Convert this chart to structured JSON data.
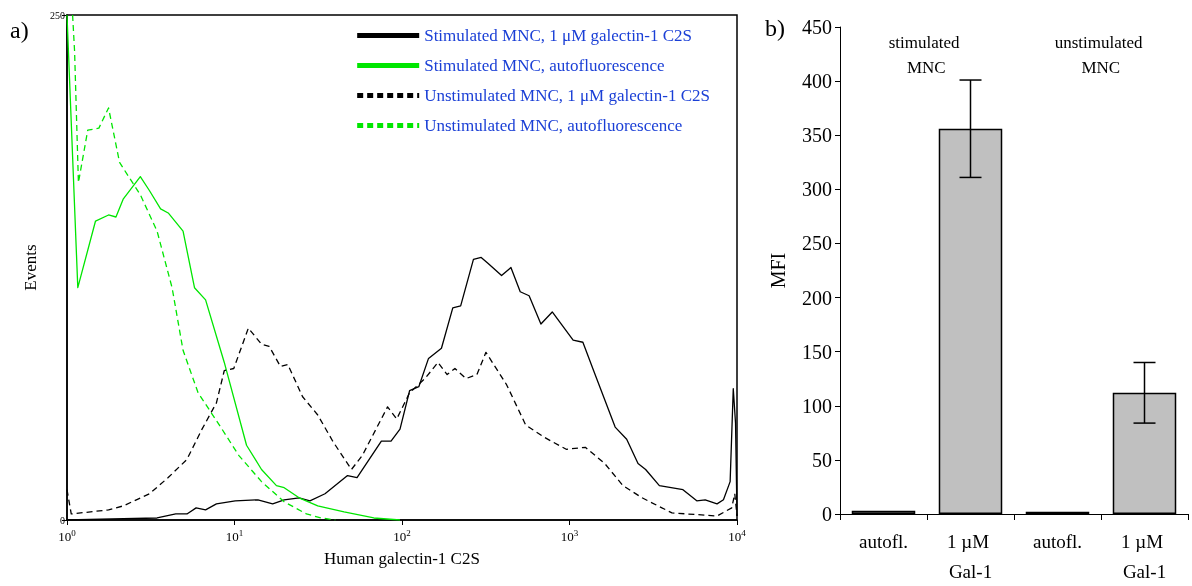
{
  "chart_data": [
    {
      "type": "line",
      "xlabel": "Human galectin-1 C2S",
      "ylabel": "Events",
      "annotations": [
        "a)"
      ],
      "log": "x",
      "xlim": [
        1,
        10000
      ],
      "xticks": [
        {
          "value": 1,
          "label": "10$^{0}$"
        },
        {
          "value": 10,
          "label": "10$^{1}$"
        },
        {
          "value": 100,
          "label": "10$^{2}$"
        },
        {
          "value": 1000,
          "label": "10$^{3}$"
        },
        {
          "value": 10000,
          "label": "10$^{4}$"
        }
      ],
      "ylim": [
        0,
        250
      ],
      "yticks": [
        0,
        250
      ],
      "grid": false,
      "legend": "top right",
      "marker": "none",
      "series": [
        {
          "name": "Stimulated MNC, 1 μM galectin-1 C2S",
          "color": "#000000",
          "line_style": "solid",
          "x": [
            1,
            3.45,
            4.46,
            5.2,
            5.9,
            6.72,
            7.8,
            10.1,
            13.8,
            16.9,
            19.8,
            24.3,
            28.2,
            34.7,
            47.3,
            53.9,
            75.3,
            86,
            97.3,
            111,
            126,
            144,
            172,
            201,
            224,
            267,
            297,
            327,
            393,
            447,
            508,
            574,
            675,
            789,
            1051,
            1202,
            1392,
            1873,
            2195,
            2565,
            2848,
            3440,
            4758,
            5750,
            6460,
            7600,
            8300,
            9100,
            9500,
            9800,
            10000
          ],
          "values": [
            0,
            1,
            3,
            3,
            6,
            5,
            8,
            9.5,
            10,
            8,
            10,
            11,
            9.5,
            13,
            22,
            21,
            39,
            39,
            45,
            64,
            66,
            80,
            85,
            105,
            106,
            129,
            130,
            127,
            121,
            125,
            113,
            111,
            97,
            103,
            89,
            88,
            74,
            46,
            40,
            28,
            25,
            17,
            15,
            9.5,
            10,
            8,
            10,
            19,
            65,
            48,
            2
          ]
        },
        {
          "name": "Stimulated MNC, autofluorescence",
          "color": "#00e600",
          "line_style": "solid",
          "x": [
            1,
            1.16,
            1.48,
            1.77,
            1.96,
            2.17,
            2.74,
            3.11,
            3.62,
            4.02,
            4.93,
            5.77,
            6.72,
            8.69,
            11.8,
            14.5,
            17.8,
            19.8,
            24.3,
            31.4,
            45.1,
            67.9,
            97.3
          ],
          "values": [
            250,
            115,
            148,
            151,
            150,
            159,
            170,
            163,
            154,
            152,
            143,
            115,
            109,
            78,
            37,
            25,
            17,
            16,
            11,
            7,
            4,
            1,
            0
          ]
        },
        {
          "name": "Unstimulated MNC, 1 μM galectin-1 C2S",
          "color": "#000000",
          "line_style": "dashed",
          "x": [
            1,
            1.06,
            1.77,
            2.17,
            3.11,
            4.02,
            5.2,
            6.4,
            7.8,
            8.69,
            9.9,
            12.1,
            14.5,
            16.1,
            18.8,
            20.8,
            25.5,
            31.4,
            38.6,
            49.9,
            58,
            82,
            93,
            111,
            137,
            164,
            186,
            207,
            241,
            280,
            317,
            421,
            548,
            705,
            956,
            1243,
            1622,
            2086,
            2710,
            4090,
            7600,
            9300,
            9700,
            10000
          ],
          "values": [
            15,
            3,
            5,
            7,
            13,
            21,
            30,
            45,
            58,
            74,
            75,
            95,
            87,
            86,
            76,
            77,
            61,
            52,
            39,
            25,
            32,
            56,
            50,
            63,
            70,
            78,
            72,
            75,
            70,
            72,
            83,
            67,
            47,
            41,
            35,
            36,
            28,
            17,
            11,
            3.5,
            2,
            6,
            13,
            2
          ]
        },
        {
          "name": "Unstimulated MNC, autofluorescence",
          "color": "#00e600",
          "line_style": "dashed",
          "x": [
            1.08,
            1.11,
            1.17,
            1.33,
            1.55,
            1.77,
            2.06,
            2.74,
            3.45,
            4.24,
            4.93,
            6.06,
            8.27,
            10.6,
            14.5,
            19.8,
            26.9,
            33,
            40
          ],
          "values": [
            250,
            232,
            167,
            193,
            194,
            204,
            177,
            161,
            143,
            115,
            84,
            63,
            46,
            32,
            19,
            9,
            3,
            1,
            0
          ]
        }
      ]
    },
    {
      "type": "bar",
      "ylabel": "MFI",
      "annotations": [
        "b)",
        "stimulated MNC",
        "unstimulated MNC"
      ],
      "categories": [
        "autofl.",
        "1 µM Gal-1",
        "autofl.",
        "1 µM Gal-1"
      ],
      "values": [
        3,
        356,
        2,
        112
      ],
      "errors": [
        null,
        45,
        null,
        28
      ],
      "color": "#c0c0c0",
      "ylim": [
        0,
        450
      ],
      "yticks": [
        0,
        50,
        100,
        150,
        200,
        250,
        300,
        350,
        400,
        450
      ],
      "grid": false,
      "legend": false
    }
  ]
}
